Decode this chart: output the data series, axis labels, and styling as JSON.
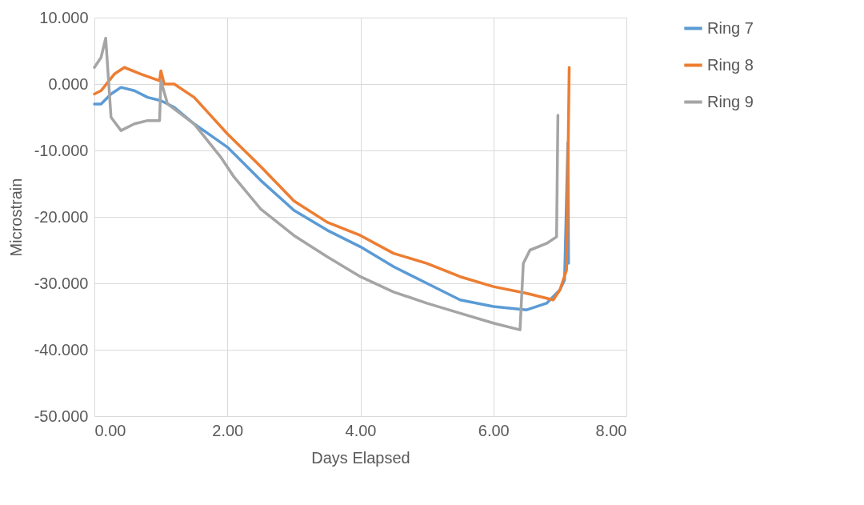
{
  "chart_data": {
    "type": "line",
    "xlabel": "Days Elapsed",
    "ylabel": "Microstrain",
    "xlim": [
      0,
      8
    ],
    "ylim": [
      -50,
      10
    ],
    "xticks": [
      {
        "value": 0,
        "label": "0.00"
      },
      {
        "value": 2,
        "label": "2.00"
      },
      {
        "value": 4,
        "label": "4.00"
      },
      {
        "value": 6,
        "label": "6.00"
      },
      {
        "value": 8,
        "label": "8.00"
      }
    ],
    "yticks": [
      {
        "value": -50,
        "label": "-50.000"
      },
      {
        "value": -40,
        "label": "-40.000"
      },
      {
        "value": -30,
        "label": "-30.000"
      },
      {
        "value": -20,
        "label": "-20.000"
      },
      {
        "value": -10,
        "label": "-10.000"
      },
      {
        "value": 0,
        "label": "0.000"
      },
      {
        "value": 10,
        "label": "10.000"
      }
    ],
    "grid": true,
    "legend": "right",
    "marker": "none",
    "line_style": "solid",
    "series": [
      {
        "name": "Ring 7",
        "color": "#5b9bd5",
        "x": [
          0,
          0.1,
          0.25,
          0.4,
          0.6,
          0.8,
          1.0,
          1.2,
          1.5,
          2.0,
          2.5,
          3.0,
          3.5,
          4.0,
          4.5,
          5.0,
          5.5,
          6.0,
          6.5,
          6.8,
          7.0,
          7.07,
          7.12,
          7.13
        ],
        "values": [
          -3,
          -3,
          -1.5,
          -0.5,
          -1,
          -2,
          -2.5,
          -3.5,
          -6,
          -9.5,
          -14.5,
          -19,
          -22,
          -24.5,
          -27.5,
          -30,
          -32.5,
          -33.5,
          -34,
          -33,
          -31,
          -29.5,
          -8.8,
          -27
        ]
      },
      {
        "name": "Ring 8",
        "color": "#ed7d31",
        "x": [
          0,
          0.1,
          0.3,
          0.45,
          0.7,
          0.98,
          1.0,
          1.05,
          1.2,
          1.5,
          2.0,
          2.5,
          3.0,
          3.5,
          4.0,
          4.5,
          5.0,
          5.5,
          6.0,
          6.5,
          6.9,
          7.0,
          7.1,
          7.14
        ],
        "values": [
          -1.5,
          -1,
          1.5,
          2.5,
          1.5,
          0.5,
          2,
          0,
          0,
          -2,
          -7.5,
          -12.4,
          -17.6,
          -20.8,
          -22.8,
          -25.5,
          -27,
          -29,
          -30.5,
          -31.5,
          -32.5,
          -31,
          -28,
          2.5
        ]
      },
      {
        "name": "Ring 9",
        "color": "#a5a5a5",
        "x": [
          0,
          0.1,
          0.17,
          0.25,
          0.4,
          0.6,
          0.8,
          0.98,
          1.0,
          1.1,
          1.5,
          1.9,
          2.1,
          2.5,
          3.0,
          3.5,
          4.0,
          4.5,
          5.0,
          5.5,
          6.0,
          6.4,
          6.45,
          6.55,
          6.8,
          6.95,
          6.97
        ],
        "values": [
          2.5,
          4,
          6.9,
          -5,
          -7,
          -6,
          -5.5,
          -5.5,
          0.5,
          -3,
          -6,
          -11,
          -14,
          -18.8,
          -22.8,
          -26,
          -29,
          -31.3,
          -33,
          -34.5,
          -36,
          -37,
          -27,
          -25,
          -24,
          -23,
          -4.7
        ]
      }
    ]
  }
}
